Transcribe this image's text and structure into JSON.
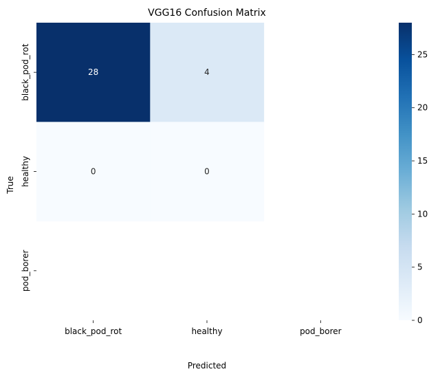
{
  "chart_data": {
    "type": "heatmap",
    "title": "VGG16 Confusion Matrix",
    "xlabel": "Predicted",
    "ylabel": "True",
    "x_categories": [
      "black_pod_rot",
      "healthy",
      "pod_borer"
    ],
    "y_categories": [
      "black_pod_rot",
      "healthy",
      "pod_borer"
    ],
    "values": [
      [
        28,
        4,
        null
      ],
      [
        0,
        0,
        null
      ],
      [
        null,
        null,
        null
      ]
    ],
    "colormap": "Blues",
    "colorbar": {
      "range": [
        0,
        28
      ],
      "ticks": [
        0,
        5,
        10,
        15,
        20,
        25
      ]
    },
    "annotate": true
  }
}
